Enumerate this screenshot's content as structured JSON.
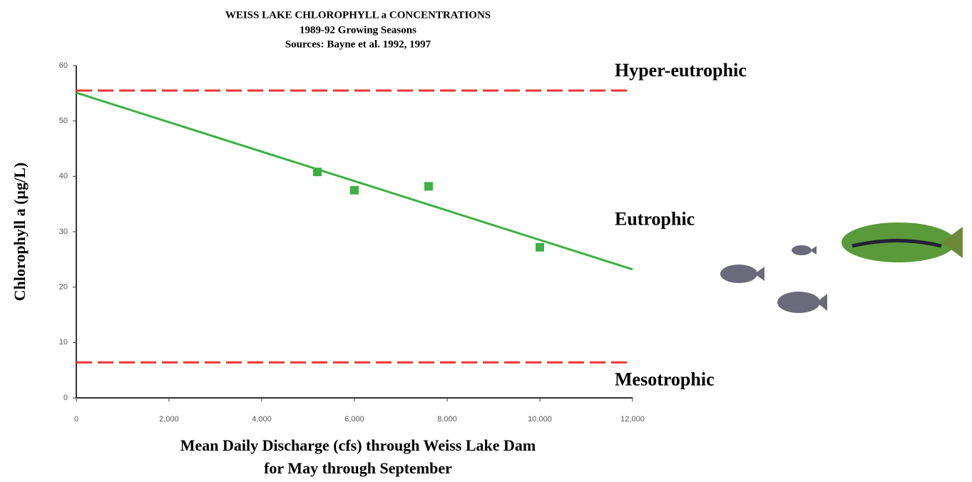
{
  "chart_data": {
    "type": "scatter",
    "title": "WEISS LAKE CHLOROPHYLL a CONCENTRATIONS",
    "subtitle": [
      "1989-92 Growing Seasons",
      "Sources: Bayne et al. 1992, 1997"
    ],
    "x_label": [
      "Mean Daily Discharge (cfs) through Weiss Lake Dam",
      "for May through September"
    ],
    "y_label": "Chlorophyll a (µg/L)",
    "x": [
      5200,
      6000,
      7600,
      10000
    ],
    "values": [
      40.8,
      37.5,
      38.2,
      27.2
    ],
    "color": "#3cb043",
    "trendline": {
      "x": [
        0,
        12000
      ],
      "values": [
        55.1,
        23.2
      ],
      "color": "#3cb043"
    },
    "reference_lines": {
      "values": [
        55.5,
        6.4
      ],
      "color": "#ee3333"
    },
    "annotations": [
      "Hyper-eutrophic",
      "Eutrophic",
      "Mesotrophic"
    ],
    "xlim": [
      0,
      12000
    ],
    "xticks": [
      0,
      {
        "value": 2000,
        "label": "2,000"
      },
      {
        "value": 4000,
        "label": "4,000"
      },
      {
        "value": 6000,
        "label": "6,000"
      },
      {
        "value": 8000,
        "label": "8,000"
      },
      {
        "value": 10000,
        "label": "10,000"
      },
      {
        "value": 12000,
        "label": "12,000"
      }
    ],
    "ylim": [
      0,
      60
    ],
    "yticks": [
      0,
      10,
      20,
      30,
      40,
      50,
      60
    ],
    "grid": false
  }
}
